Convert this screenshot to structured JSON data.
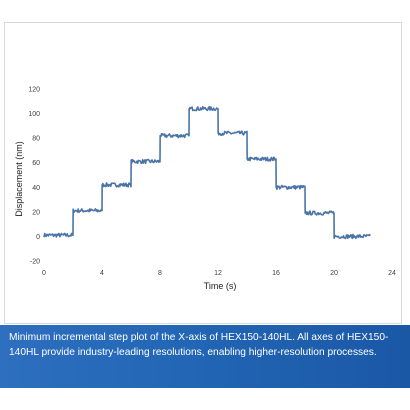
{
  "caption": "Minimum incremental step plot of the X-axis of HEX150-140HL. All axes of HEX150-140HL provide industry-leading resolutions, enabling higher-resolution processes.",
  "chart_data": {
    "type": "line",
    "title": "",
    "xlabel": "Time (s)",
    "ylabel": "Displacement (nm)",
    "xlim": [
      0,
      24
    ],
    "ylim": [
      -20,
      120
    ],
    "x_ticks": [
      "0",
      "4",
      "8",
      "12",
      "16",
      "20",
      "24"
    ],
    "y_ticks": [
      "-20",
      "0",
      "20",
      "40",
      "60",
      "80",
      "100",
      "120"
    ],
    "grid": false,
    "legend": "none",
    "line_color": "#4a74a8",
    "series": [
      {
        "name": "",
        "x": [
          0,
          2,
          2.01,
          4,
          4.01,
          6,
          6.01,
          8,
          8.01,
          10,
          10.01,
          12,
          12.01,
          14,
          14.01,
          16,
          16.01,
          18,
          18.01,
          20,
          20.01,
          22.5
        ],
        "values": [
          1,
          1,
          21,
          21,
          42,
          42,
          61,
          61,
          82,
          82,
          104,
          104,
          84,
          84,
          63,
          63,
          40,
          40,
          19,
          19,
          0,
          0
        ]
      }
    ]
  }
}
